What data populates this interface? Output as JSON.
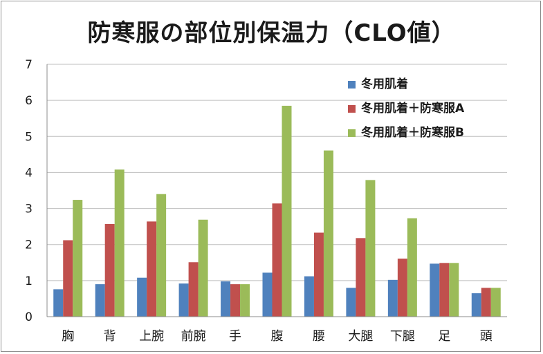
{
  "chart_data": {
    "type": "bar",
    "title": "防寒服の部位別保温力（CLO値）",
    "categories": [
      "胸",
      "背",
      "上腕",
      "前腕",
      "手",
      "腹",
      "腰",
      "大腿",
      "下腿",
      "足",
      "頭"
    ],
    "series": [
      {
        "name": "冬用肌着",
        "color": "#4f81bd",
        "values": [
          0.76,
          0.9,
          1.08,
          0.92,
          0.98,
          1.22,
          1.12,
          0.8,
          1.02,
          1.47,
          0.65
        ]
      },
      {
        "name": "冬用肌着＋防寒服A",
        "color": "#c0504d",
        "values": [
          2.12,
          2.57,
          2.64,
          1.51,
          0.9,
          3.14,
          2.33,
          2.18,
          1.61,
          1.49,
          0.8
        ]
      },
      {
        "name": "冬用肌着＋防寒服B",
        "color": "#9bbb59",
        "values": [
          3.24,
          4.08,
          3.4,
          2.69,
          0.9,
          5.85,
          4.61,
          3.79,
          2.73,
          1.49,
          0.8
        ]
      }
    ],
    "y_ticks": [
      "0",
      "1",
      "2",
      "3",
      "4",
      "5",
      "6",
      "7"
    ],
    "ylim": [
      0,
      7
    ],
    "grid": true,
    "legend_position": "top-right"
  }
}
